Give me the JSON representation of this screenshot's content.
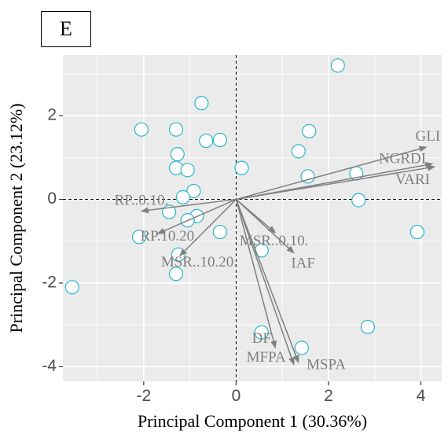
{
  "panel_label": "E",
  "chart_data": {
    "type": "scatter",
    "subtype": "pca-biplot",
    "xlabel": "Principal Component 1 (30.36%)",
    "ylabel": "Principal Component 2 (23.12%)",
    "xlim": [
      -3.75,
      4.45
    ],
    "ylim": [
      -4.35,
      3.45
    ],
    "x_ticks": [
      -2,
      0,
      2,
      4
    ],
    "x_tick_labels": [
      "-2",
      "0",
      "2",
      "4"
    ],
    "y_ticks": [
      -4,
      -2,
      0,
      2
    ],
    "y_tick_labels": [
      "-4",
      "-2",
      "0",
      "2"
    ],
    "grid": true,
    "zero_lines": "dashed",
    "background": "#ebebeb",
    "point_color": "#2ab7c9",
    "arrow_color": "#808080",
    "points": [
      {
        "x": -3.55,
        "y": -2.1
      },
      {
        "x": -2.05,
        "y": 1.67
      },
      {
        "x": -2.1,
        "y": -0.9
      },
      {
        "x": -1.3,
        "y": 1.67
      },
      {
        "x": -1.27,
        "y": 1.08
      },
      {
        "x": -1.3,
        "y": 0.75
      },
      {
        "x": -0.75,
        "y": 2.3
      },
      {
        "x": -0.65,
        "y": 1.4
      },
      {
        "x": -0.35,
        "y": 1.42
      },
      {
        "x": -1.05,
        "y": 0.7
      },
      {
        "x": -0.92,
        "y": 0.2
      },
      {
        "x": -1.15,
        "y": 0.05
      },
      {
        "x": -1.45,
        "y": -0.3
      },
      {
        "x": -0.85,
        "y": -0.4
      },
      {
        "x": -1.05,
        "y": -0.5
      },
      {
        "x": -0.35,
        "y": -0.78
      },
      {
        "x": -1.25,
        "y": -1.32
      },
      {
        "x": -1.3,
        "y": -1.78
      },
      {
        "x": 0.12,
        "y": 0.75
      },
      {
        "x": 0.55,
        "y": -1.22
      },
      {
        "x": 0.55,
        "y": -3.18
      },
      {
        "x": 1.42,
        "y": -3.55
      },
      {
        "x": 1.35,
        "y": 1.15
      },
      {
        "x": 1.58,
        "y": 1.63
      },
      {
        "x": 1.55,
        "y": 0.55
      },
      {
        "x": 2.2,
        "y": 3.2
      },
      {
        "x": 2.6,
        "y": 0.62
      },
      {
        "x": 2.65,
        "y": -0.02
      },
      {
        "x": 2.85,
        "y": -3.05
      },
      {
        "x": 3.92,
        "y": -0.78
      }
    ],
    "loadings": [
      {
        "label": "GLI",
        "x": 4.12,
        "y": 1.25,
        "label_x": 4.15,
        "label_y": 1.48
      },
      {
        "label": "NGRDI",
        "x": 4.25,
        "y": 0.85,
        "label_x": 3.6,
        "label_y": 0.95
      },
      {
        "label": "VARI",
        "x": 4.3,
        "y": 0.78,
        "label_x": 3.82,
        "label_y": 0.45
      },
      {
        "label": "RP..0.10.",
        "x": -2.05,
        "y": -0.28,
        "label_x": -2.05,
        "label_y": -0.05
      },
      {
        "label": "RP.10.20.",
        "x": -1.7,
        "y": -0.82,
        "label_x": -1.45,
        "label_y": -0.9
      },
      {
        "label": "MSR..0.10.",
        "x": 0.85,
        "y": -0.8,
        "label_x": 0.82,
        "label_y": -1.02
      },
      {
        "label": "MSR..10.20.",
        "x": -1.22,
        "y": -1.35,
        "label_x": -0.8,
        "label_y": -1.52
      },
      {
        "label": "IAF",
        "x": 1.25,
        "y": -1.28,
        "label_x": 1.45,
        "label_y": -1.55
      },
      {
        "label": "DF",
        "x": 0.85,
        "y": -3.55,
        "label_x": 0.55,
        "label_y": -3.35
      },
      {
        "label": "MFPA",
        "x": 1.25,
        "y": -3.95,
        "label_x": 0.65,
        "label_y": -3.8
      },
      {
        "label": "MSPA",
        "x": 1.35,
        "y": -3.9,
        "label_x": 1.95,
        "label_y": -3.98
      }
    ]
  }
}
